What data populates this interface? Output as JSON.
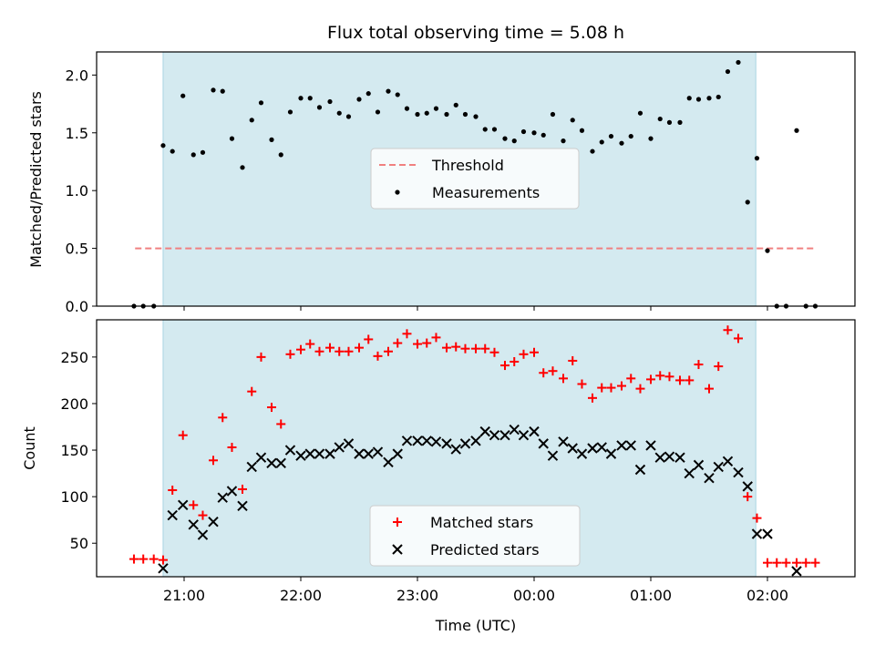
{
  "chart_data": {
    "type": "scatter",
    "title": "Flux total observing time = 5.08 h",
    "x_label": "Time (UTC)",
    "x_unit": "hours since 21:00 UTC",
    "x_ticks": [
      {
        "value": 0,
        "label": "21:00"
      },
      {
        "value": 1,
        "label": "22:00"
      },
      {
        "value": 2,
        "label": "23:00"
      },
      {
        "value": 3,
        "label": "00:00"
      },
      {
        "value": 4,
        "label": "01:00"
      },
      {
        "value": 5,
        "label": "02:00"
      }
    ],
    "x_range": [
      -0.75,
      5.75
    ],
    "observing_window": [
      -0.18,
      4.9
    ],
    "colors": {
      "window": "#d4eaf0",
      "window_edge": "#a9d4e2",
      "threshold": "#f08080",
      "measurements": "#000000",
      "matched": "#ff0000",
      "predicted": "#000000"
    },
    "top": {
      "y_label": "Matched/Predicted stars",
      "y_range": [
        0,
        2.2
      ],
      "y_ticks": [
        {
          "value": 0,
          "label": "0.0"
        },
        {
          "value": 0.5,
          "label": "0.5"
        },
        {
          "value": 1,
          "label": "1.0"
        },
        {
          "value": 1.5,
          "label": "1.5"
        },
        {
          "value": 2,
          "label": "2.0"
        }
      ],
      "threshold": {
        "value": 0.5,
        "x_start": -0.42,
        "x_end": 5.42,
        "name": "Threshold"
      },
      "measurements_name": "Measurements",
      "measurements": [
        [
          -0.43,
          0
        ],
        [
          -0.35,
          0
        ],
        [
          -0.26,
          0
        ],
        [
          -0.18,
          1.39
        ],
        [
          -0.1,
          1.34
        ],
        [
          -0.01,
          1.82
        ],
        [
          0.08,
          1.31
        ],
        [
          0.16,
          1.33
        ],
        [
          0.25,
          1.87
        ],
        [
          0.33,
          1.86
        ],
        [
          0.41,
          1.45
        ],
        [
          0.5,
          1.2
        ],
        [
          0.58,
          1.61
        ],
        [
          0.66,
          1.76
        ],
        [
          0.75,
          1.44
        ],
        [
          0.83,
          1.31
        ],
        [
          0.91,
          1.68
        ],
        [
          1.0,
          1.8
        ],
        [
          1.08,
          1.8
        ],
        [
          1.16,
          1.72
        ],
        [
          1.25,
          1.77
        ],
        [
          1.33,
          1.67
        ],
        [
          1.41,
          1.64
        ],
        [
          1.5,
          1.79
        ],
        [
          1.58,
          1.84
        ],
        [
          1.66,
          1.68
        ],
        [
          1.75,
          1.86
        ],
        [
          1.83,
          1.83
        ],
        [
          1.91,
          1.71
        ],
        [
          2.0,
          1.66
        ],
        [
          2.08,
          1.67
        ],
        [
          2.16,
          1.71
        ],
        [
          2.25,
          1.66
        ],
        [
          2.33,
          1.74
        ],
        [
          2.41,
          1.66
        ],
        [
          2.5,
          1.64
        ],
        [
          2.58,
          1.53
        ],
        [
          2.66,
          1.53
        ],
        [
          2.75,
          1.45
        ],
        [
          2.83,
          1.43
        ],
        [
          2.91,
          1.51
        ],
        [
          3.0,
          1.5
        ],
        [
          3.08,
          1.48
        ],
        [
          3.16,
          1.66
        ],
        [
          3.25,
          1.43
        ],
        [
          3.33,
          1.61
        ],
        [
          3.41,
          1.52
        ],
        [
          3.5,
          1.34
        ],
        [
          3.58,
          1.42
        ],
        [
          3.66,
          1.47
        ],
        [
          3.75,
          1.41
        ],
        [
          3.83,
          1.47
        ],
        [
          3.91,
          1.67
        ],
        [
          4.0,
          1.45
        ],
        [
          4.08,
          1.62
        ],
        [
          4.16,
          1.59
        ],
        [
          4.25,
          1.59
        ],
        [
          4.33,
          1.8
        ],
        [
          4.41,
          1.79
        ],
        [
          4.5,
          1.8
        ],
        [
          4.58,
          1.81
        ],
        [
          4.66,
          2.03
        ],
        [
          4.75,
          2.11
        ],
        [
          4.83,
          0.9
        ],
        [
          4.91,
          1.28
        ],
        [
          5.0,
          0.48
        ],
        [
          5.08,
          0
        ],
        [
          5.16,
          0
        ],
        [
          5.25,
          1.52
        ],
        [
          5.33,
          0
        ],
        [
          5.41,
          0
        ]
      ]
    },
    "bottom": {
      "y_label": "Count",
      "y_range": [
        14,
        290
      ],
      "y_ticks": [
        {
          "value": 50,
          "label": "50"
        },
        {
          "value": 100,
          "label": "100"
        },
        {
          "value": 150,
          "label": "150"
        },
        {
          "value": 200,
          "label": "200"
        },
        {
          "value": 250,
          "label": "250"
        }
      ],
      "matched_name": "Matched stars",
      "predicted_name": "Predicted stars",
      "matched": [
        [
          -0.43,
          33
        ],
        [
          -0.35,
          33
        ],
        [
          -0.26,
          33
        ],
        [
          -0.18,
          32
        ],
        [
          -0.1,
          107
        ],
        [
          -0.01,
          166
        ],
        [
          0.08,
          91
        ],
        [
          0.16,
          80
        ],
        [
          0.25,
          139
        ],
        [
          0.33,
          185
        ],
        [
          0.41,
          153
        ],
        [
          0.5,
          108
        ],
        [
          0.58,
          213
        ],
        [
          0.66,
          250
        ],
        [
          0.75,
          196
        ],
        [
          0.83,
          178
        ],
        [
          0.91,
          253
        ],
        [
          1.0,
          258
        ],
        [
          1.08,
          264
        ],
        [
          1.16,
          256
        ],
        [
          1.25,
          260
        ],
        [
          1.33,
          256
        ],
        [
          1.41,
          256
        ],
        [
          1.5,
          260
        ],
        [
          1.58,
          269
        ],
        [
          1.66,
          251
        ],
        [
          1.75,
          256
        ],
        [
          1.83,
          265
        ],
        [
          1.91,
          275
        ],
        [
          2.0,
          264
        ],
        [
          2.08,
          265
        ],
        [
          2.16,
          271
        ],
        [
          2.25,
          260
        ],
        [
          2.33,
          261
        ],
        [
          2.41,
          259
        ],
        [
          2.5,
          259
        ],
        [
          2.58,
          259
        ],
        [
          2.66,
          255
        ],
        [
          2.75,
          241
        ],
        [
          2.83,
          245
        ],
        [
          2.91,
          253
        ],
        [
          3.0,
          255
        ],
        [
          3.08,
          233
        ],
        [
          3.16,
          235
        ],
        [
          3.25,
          227
        ],
        [
          3.33,
          246
        ],
        [
          3.41,
          221
        ],
        [
          3.5,
          206
        ],
        [
          3.58,
          217
        ],
        [
          3.66,
          217
        ],
        [
          3.75,
          219
        ],
        [
          3.83,
          227
        ],
        [
          3.91,
          216
        ],
        [
          4.0,
          226
        ],
        [
          4.08,
          230
        ],
        [
          4.16,
          229
        ],
        [
          4.25,
          225
        ],
        [
          4.33,
          225
        ],
        [
          4.41,
          242
        ],
        [
          4.5,
          216
        ],
        [
          4.58,
          240
        ],
        [
          4.66,
          279
        ],
        [
          4.75,
          270
        ],
        [
          4.83,
          100
        ],
        [
          4.91,
          77
        ],
        [
          5.0,
          29
        ],
        [
          5.08,
          29
        ],
        [
          5.16,
          29
        ],
        [
          5.25,
          29
        ],
        [
          5.33,
          29
        ],
        [
          5.41,
          29
        ]
      ],
      "predicted": [
        [
          -0.18,
          23
        ],
        [
          -0.1,
          80
        ],
        [
          -0.01,
          91
        ],
        [
          0.08,
          70
        ],
        [
          0.16,
          59
        ],
        [
          0.25,
          73
        ],
        [
          0.33,
          99
        ],
        [
          0.41,
          106
        ],
        [
          0.5,
          90
        ],
        [
          0.58,
          132
        ],
        [
          0.66,
          142
        ],
        [
          0.75,
          136
        ],
        [
          0.83,
          136
        ],
        [
          0.91,
          150
        ],
        [
          1.0,
          144
        ],
        [
          1.08,
          146
        ],
        [
          1.16,
          146
        ],
        [
          1.25,
          146
        ],
        [
          1.33,
          153
        ],
        [
          1.41,
          157
        ],
        [
          1.5,
          146
        ],
        [
          1.58,
          146
        ],
        [
          1.66,
          148
        ],
        [
          1.75,
          137
        ],
        [
          1.83,
          146
        ],
        [
          1.91,
          160
        ],
        [
          2.0,
          160
        ],
        [
          2.08,
          160
        ],
        [
          2.16,
          159
        ],
        [
          2.25,
          157
        ],
        [
          2.33,
          151
        ],
        [
          2.41,
          157
        ],
        [
          2.5,
          160
        ],
        [
          2.58,
          170
        ],
        [
          2.66,
          166
        ],
        [
          2.75,
          166
        ],
        [
          2.83,
          172
        ],
        [
          2.91,
          166
        ],
        [
          3.0,
          170
        ],
        [
          3.08,
          157
        ],
        [
          3.16,
          144
        ],
        [
          3.25,
          159
        ],
        [
          3.33,
          152
        ],
        [
          3.41,
          146
        ],
        [
          3.5,
          152
        ],
        [
          3.58,
          153
        ],
        [
          3.66,
          146
        ],
        [
          3.75,
          155
        ],
        [
          3.83,
          155
        ],
        [
          3.91,
          129
        ],
        [
          4.0,
          155
        ],
        [
          4.08,
          142
        ],
        [
          4.16,
          143
        ],
        [
          4.25,
          142
        ],
        [
          4.33,
          125
        ],
        [
          4.41,
          134
        ],
        [
          4.5,
          120
        ],
        [
          4.58,
          132
        ],
        [
          4.66,
          138
        ],
        [
          4.75,
          126
        ],
        [
          4.83,
          111
        ],
        [
          4.91,
          60
        ],
        [
          5.0,
          60
        ],
        [
          5.25,
          20
        ]
      ]
    }
  }
}
